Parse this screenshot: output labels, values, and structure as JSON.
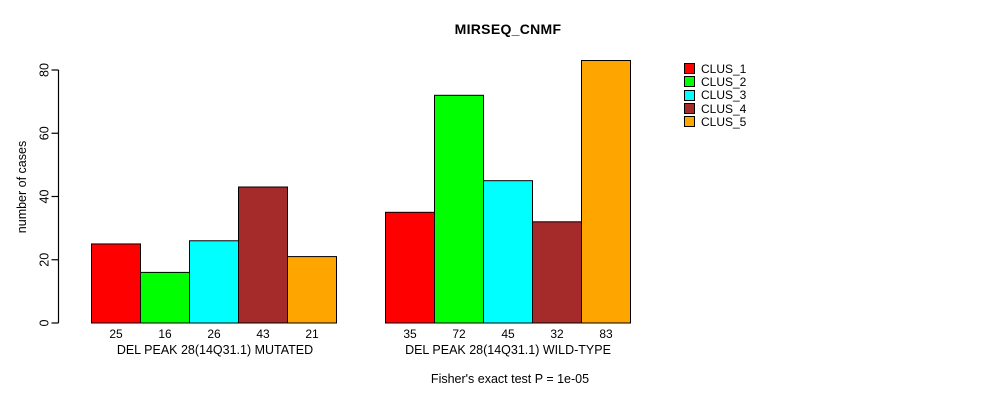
{
  "chart_data": {
    "type": "bar",
    "title": "MIRSEQ_CNMF",
    "ylabel": "number of cases",
    "xlabel": "",
    "ylim": [
      0,
      80
    ],
    "yticks": [
      0,
      20,
      40,
      60,
      80
    ],
    "grid": false,
    "legend_position": "right",
    "groups": [
      {
        "label": "DEL PEAK 28(14Q31.1) MUTATED",
        "values": [
          25,
          16,
          26,
          43,
          21
        ]
      },
      {
        "label": "DEL PEAK 28(14Q31.1) WILD-TYPE",
        "values": [
          35,
          72,
          45,
          32,
          83
        ]
      }
    ],
    "series": [
      {
        "name": "CLUS_1",
        "values": [
          25,
          35
        ],
        "color": "#FF0000"
      },
      {
        "name": "CLUS_2",
        "values": [
          16,
          72
        ],
        "color": "#00FF00"
      },
      {
        "name": "CLUS_3",
        "values": [
          26,
          45
        ],
        "color": "#00FFFF"
      },
      {
        "name": "CLUS_4",
        "values": [
          43,
          32
        ],
        "color": "#A52A2A"
      },
      {
        "name": "CLUS_5",
        "values": [
          21,
          83
        ],
        "color": "#FFA500"
      }
    ],
    "series_colors": [
      "#FF0000",
      "#00FF00",
      "#00FFFF",
      "#A52A2A",
      "#FFA500"
    ],
    "legend": [
      {
        "label": "CLUS_1",
        "color": "#FF0000"
      },
      {
        "label": "CLUS_2",
        "color": "#00FF00"
      },
      {
        "label": "CLUS_3",
        "color": "#00FFFF"
      },
      {
        "label": "CLUS_4",
        "color": "#A52A2A"
      },
      {
        "label": "CLUS_5",
        "color": "#FFA500"
      }
    ],
    "bar_value_labels": true,
    "footer": "Fisher's exact test P = 1e-05",
    "axis_color": "#000000",
    "bar_border_color": "#000000"
  }
}
